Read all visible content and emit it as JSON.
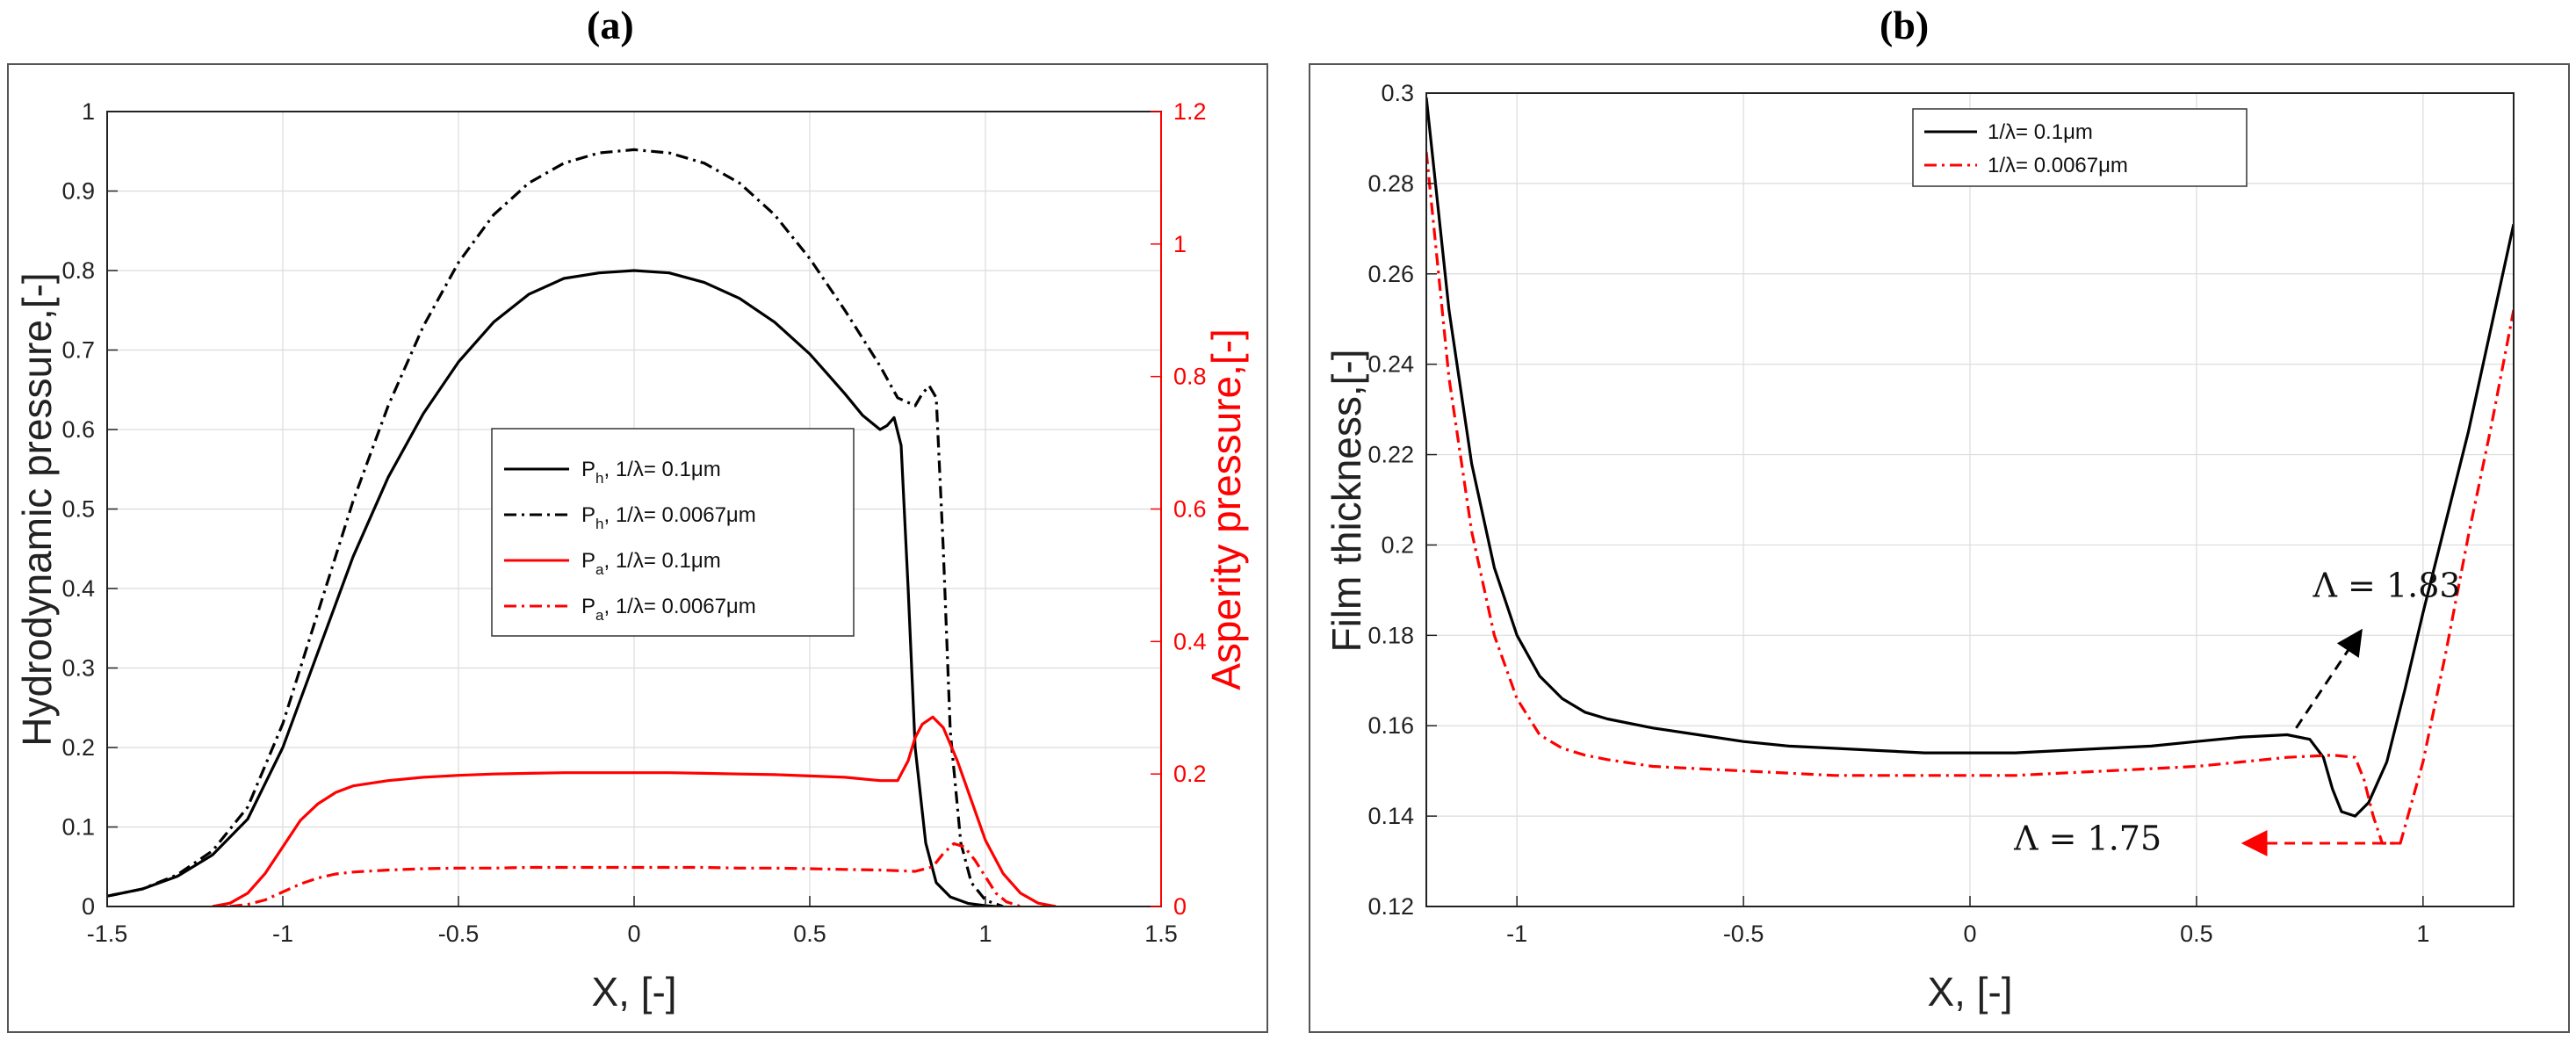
{
  "chart_data": [
    {
      "panel": "(a)",
      "type": "line",
      "title": "",
      "xlabel": "X, [-]",
      "ylabel": "Hydrodynamic pressure,[-]",
      "y2label": "Asperity pressure,[-]",
      "xlim": [
        -1.5,
        1.5
      ],
      "ylim": [
        0,
        1
      ],
      "y2lim": [
        0,
        1.2
      ],
      "grid": true,
      "legend": "center",
      "xticks": [
        "-1.5",
        "-1",
        "-0.5",
        "0",
        "0.5",
        "1",
        "1.5"
      ],
      "yticks": [
        "0",
        "0.1",
        "0.2",
        "0.3",
        "0.4",
        "0.5",
        "0.6",
        "0.7",
        "0.8",
        "0.9",
        "1"
      ],
      "y2ticks": [
        "0",
        "0.2",
        "0.4",
        "0.6",
        "0.8",
        "1",
        "1.2"
      ],
      "series": [
        {
          "name": "P_h, 1/λ= 0.1μm",
          "legend_main": "P",
          "legend_sub": "h",
          "legend_rest": ", 1/λ= 0.1μm",
          "color": "#000000",
          "style": "solid",
          "axis": "left",
          "x": [
            -1.5,
            -1.4,
            -1.3,
            -1.2,
            -1.1,
            -1.0,
            -0.9,
            -0.8,
            -0.7,
            -0.6,
            -0.5,
            -0.4,
            -0.3,
            -0.2,
            -0.1,
            0.0,
            0.1,
            0.2,
            0.3,
            0.4,
            0.5,
            0.55,
            0.6,
            0.65,
            0.7,
            0.72,
            0.74,
            0.76,
            0.78,
            0.8,
            0.83,
            0.86,
            0.9,
            0.95,
            1.0,
            1.03
          ],
          "y": [
            0.013,
            0.022,
            0.038,
            0.065,
            0.11,
            0.2,
            0.32,
            0.44,
            0.54,
            0.62,
            0.685,
            0.735,
            0.77,
            0.79,
            0.797,
            0.8,
            0.797,
            0.785,
            0.765,
            0.735,
            0.695,
            0.67,
            0.645,
            0.618,
            0.6,
            0.605,
            0.615,
            0.58,
            0.4,
            0.2,
            0.08,
            0.03,
            0.012,
            0.004,
            0.001,
            0.0
          ]
        },
        {
          "name": "P_h, 1/λ= 0.0067μm",
          "legend_main": "P",
          "legend_sub": "h",
          "legend_rest": ", 1/λ= 0.0067μm",
          "color": "#000000",
          "style": "dashdot",
          "axis": "left",
          "x": [
            -1.5,
            -1.4,
            -1.3,
            -1.2,
            -1.1,
            -1.0,
            -0.9,
            -0.8,
            -0.7,
            -0.6,
            -0.5,
            -0.4,
            -0.3,
            -0.2,
            -0.1,
            0.0,
            0.1,
            0.2,
            0.3,
            0.4,
            0.5,
            0.6,
            0.7,
            0.75,
            0.8,
            0.82,
            0.84,
            0.86,
            0.88,
            0.9,
            0.93,
            0.96,
            1.0,
            1.05
          ],
          "y": [
            0.013,
            0.022,
            0.04,
            0.07,
            0.125,
            0.23,
            0.37,
            0.51,
            0.63,
            0.73,
            0.81,
            0.87,
            0.91,
            0.935,
            0.948,
            0.952,
            0.948,
            0.935,
            0.91,
            0.87,
            0.815,
            0.75,
            0.68,
            0.64,
            0.63,
            0.645,
            0.655,
            0.64,
            0.45,
            0.22,
            0.08,
            0.03,
            0.008,
            0.0
          ]
        },
        {
          "name": "P_a, 1/λ= 0.1μm",
          "legend_main": "P",
          "legend_sub": "a",
          "legend_rest": ", 1/λ= 0.1μm",
          "color": "#ff0000",
          "style": "solid",
          "axis": "right",
          "x": [
            -1.2,
            -1.15,
            -1.1,
            -1.05,
            -1.0,
            -0.95,
            -0.9,
            -0.85,
            -0.8,
            -0.7,
            -0.6,
            -0.5,
            -0.4,
            -0.3,
            -0.2,
            -0.1,
            0.0,
            0.1,
            0.2,
            0.3,
            0.4,
            0.5,
            0.6,
            0.7,
            0.75,
            0.78,
            0.8,
            0.82,
            0.85,
            0.88,
            0.92,
            0.96,
            1.0,
            1.05,
            1.1,
            1.15,
            1.2
          ],
          "y": [
            0.0,
            0.005,
            0.02,
            0.05,
            0.09,
            0.13,
            0.155,
            0.172,
            0.182,
            0.19,
            0.195,
            0.198,
            0.2,
            0.201,
            0.202,
            0.202,
            0.202,
            0.202,
            0.201,
            0.2,
            0.199,
            0.197,
            0.195,
            0.19,
            0.19,
            0.22,
            0.255,
            0.275,
            0.286,
            0.27,
            0.22,
            0.16,
            0.1,
            0.05,
            0.02,
            0.005,
            0.0
          ]
        },
        {
          "name": "P_a, 1/λ= 0.0067μm",
          "legend_main": "P",
          "legend_sub": "a",
          "legend_rest": ", 1/λ= 0.0067μm",
          "color": "#ff0000",
          "style": "dashdot",
          "axis": "right",
          "x": [
            -1.15,
            -1.1,
            -1.05,
            -1.0,
            -0.95,
            -0.9,
            -0.85,
            -0.8,
            -0.7,
            -0.6,
            -0.5,
            -0.4,
            -0.3,
            -0.2,
            -0.1,
            0.0,
            0.1,
            0.2,
            0.3,
            0.4,
            0.5,
            0.6,
            0.7,
            0.8,
            0.85,
            0.88,
            0.91,
            0.94,
            0.97,
            1.0,
            1.03,
            1.06,
            1.1
          ],
          "y": [
            0.0,
            0.003,
            0.01,
            0.022,
            0.034,
            0.043,
            0.049,
            0.052,
            0.055,
            0.057,
            0.058,
            0.058,
            0.059,
            0.059,
            0.059,
            0.059,
            0.059,
            0.059,
            0.058,
            0.058,
            0.057,
            0.056,
            0.055,
            0.053,
            0.06,
            0.08,
            0.095,
            0.09,
            0.07,
            0.045,
            0.02,
            0.007,
            0.0
          ]
        }
      ]
    },
    {
      "panel": "(b)",
      "type": "line",
      "title": "",
      "xlabel": "X, [-]",
      "ylabel": "Film thickness,[-]",
      "xlim": [
        -1.2,
        1.2
      ],
      "ylim": [
        0.12,
        0.3
      ],
      "grid": true,
      "legend": "top-center",
      "xticks": [
        "-1",
        "-0.5",
        "0",
        "0.5",
        "1"
      ],
      "xtick_values": [
        -1,
        -0.5,
        0,
        0.5,
        1
      ],
      "yticks": [
        "0.12",
        "0.14",
        "0.16",
        "0.18",
        "0.2",
        "0.22",
        "0.24",
        "0.26",
        "0.28",
        "0.3"
      ],
      "series": [
        {
          "name": "1/λ= 0.1μm",
          "legend_rest": "1/λ= 0.1μm",
          "color": "#000000",
          "style": "solid",
          "x": [
            -1.2,
            -1.15,
            -1.1,
            -1.05,
            -1.0,
            -0.95,
            -0.9,
            -0.85,
            -0.8,
            -0.7,
            -0.6,
            -0.5,
            -0.4,
            -0.3,
            -0.2,
            -0.1,
            0.0,
            0.1,
            0.2,
            0.3,
            0.4,
            0.5,
            0.6,
            0.7,
            0.75,
            0.78,
            0.8,
            0.82,
            0.85,
            0.88,
            0.92,
            0.96,
            1.0,
            1.05,
            1.1,
            1.15,
            1.2
          ],
          "y": [
            0.299,
            0.252,
            0.218,
            0.195,
            0.18,
            0.171,
            0.166,
            0.163,
            0.1615,
            0.1595,
            0.158,
            0.1565,
            0.1555,
            0.155,
            0.1545,
            0.154,
            0.154,
            0.154,
            0.1545,
            0.155,
            0.1555,
            0.1565,
            0.1575,
            0.158,
            0.157,
            0.153,
            0.146,
            0.141,
            0.14,
            0.143,
            0.152,
            0.168,
            0.185,
            0.205,
            0.225,
            0.248,
            0.271
          ]
        },
        {
          "name": "1/λ= 0.0067μm",
          "legend_rest": "1/λ= 0.0067μm",
          "color": "#ff0000",
          "style": "dashdot",
          "x": [
            -1.2,
            -1.15,
            -1.1,
            -1.05,
            -1.0,
            -0.95,
            -0.9,
            -0.85,
            -0.8,
            -0.7,
            -0.6,
            -0.5,
            -0.4,
            -0.3,
            -0.2,
            -0.1,
            0.0,
            0.1,
            0.2,
            0.3,
            0.4,
            0.5,
            0.6,
            0.7,
            0.8,
            0.85,
            0.87,
            0.89,
            0.91,
            0.95,
            1.0,
            1.05,
            1.1,
            1.15,
            1.2
          ],
          "y": [
            0.287,
            0.237,
            0.203,
            0.18,
            0.166,
            0.158,
            0.155,
            0.1535,
            0.1525,
            0.151,
            0.1505,
            0.15,
            0.1495,
            0.149,
            0.149,
            0.149,
            0.149,
            0.149,
            0.1495,
            0.15,
            0.1505,
            0.151,
            0.152,
            0.153,
            0.1535,
            0.153,
            0.148,
            0.14,
            0.134,
            0.134,
            0.152,
            0.176,
            0.202,
            0.226,
            0.252
          ]
        }
      ],
      "annotations": [
        {
          "text": "Λ = 1.83",
          "text_x": 0.92,
          "text_y": 0.1885,
          "arrow_from": [
            0.72,
            0.1595
          ],
          "arrow_to": [
            0.86,
            0.1805
          ],
          "style": "dashed",
          "color": "#000000"
        },
        {
          "text": "Λ = 1.75",
          "text_x": 0.26,
          "text_y": 0.1325,
          "arrow_from": [
            0.95,
            0.134
          ],
          "arrow_to": [
            0.61,
            0.134
          ],
          "style": "dashed",
          "color": "#ff0000"
        }
      ]
    }
  ]
}
